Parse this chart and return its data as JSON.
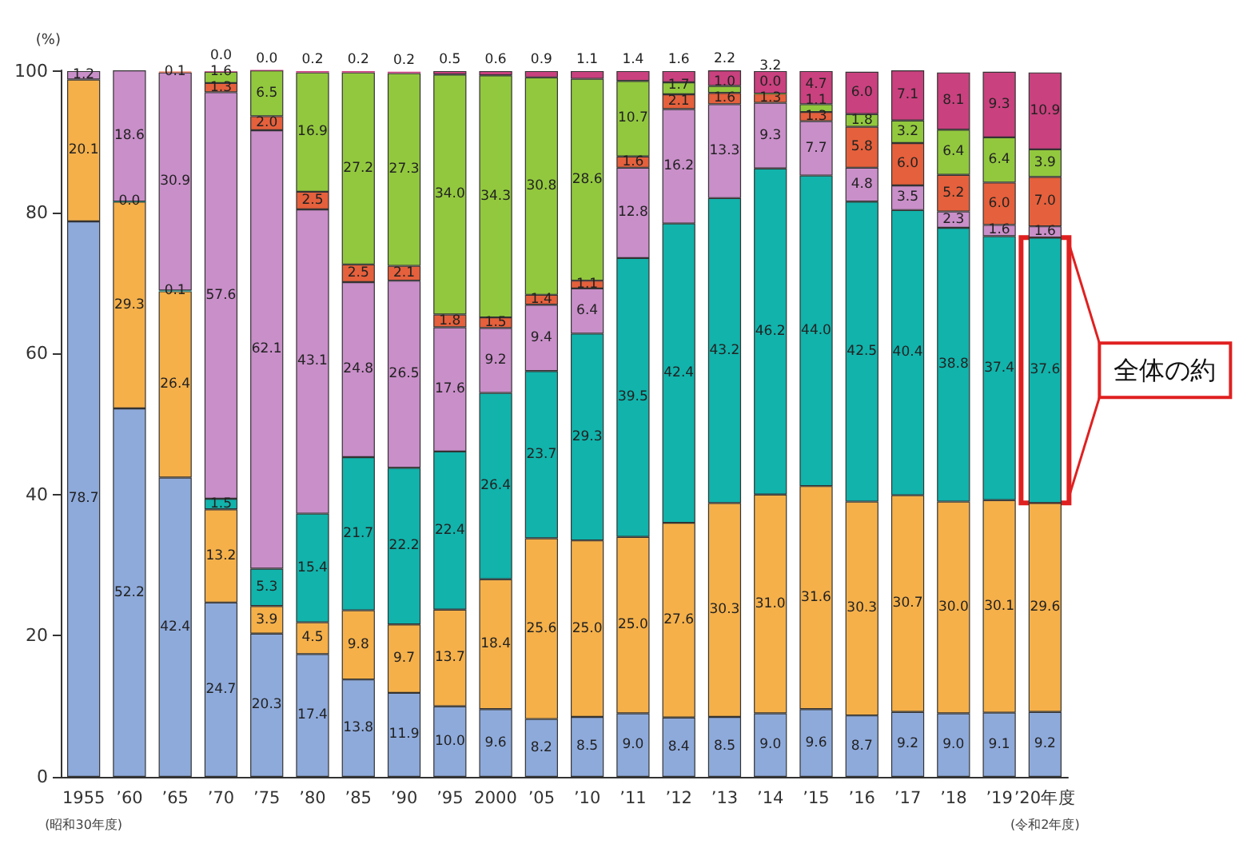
{
  "chart_data": {
    "type": "bar",
    "stacked": true,
    "grid": false,
    "ylabel": "(%)",
    "ylim": [
      0,
      100.1
    ],
    "yticks": [
      0,
      20,
      40,
      60,
      80,
      100
    ],
    "categories": [
      "1955",
      "’60",
      "’65",
      "’70",
      "’75",
      "’80",
      "’85",
      "’90",
      "’95",
      "2000",
      "’05",
      "’10",
      "’11",
      "’12",
      "’13",
      "’14",
      "’15",
      "’16",
      "’17",
      "’18",
      "’19",
      "’20年度"
    ],
    "series": [
      {
        "color": "#8eaadb",
        "values": [
          78.7,
          52.2,
          42.4,
          24.7,
          20.3,
          17.4,
          13.8,
          11.9,
          10.0,
          9.6,
          8.2,
          8.5,
          9.0,
          8.4,
          8.5,
          9.0,
          9.6,
          8.7,
          9.2,
          9.0,
          9.1,
          9.2
        ],
        "value_labels": [
          "78.7",
          "52.2",
          "42.4",
          "24.7",
          "20.3",
          "17.4",
          "13.8",
          "11.9",
          "10.0",
          "9.6",
          "8.2",
          "8.5",
          "9.0",
          "8.4",
          "8.5",
          "9.0",
          "9.6",
          "8.7",
          "9.2",
          "9.0",
          "9.1",
          "9.2"
        ]
      },
      {
        "color": "#f5b04a",
        "values": [
          20.1,
          29.3,
          26.4,
          13.2,
          3.9,
          4.5,
          9.8,
          9.7,
          13.7,
          18.4,
          25.6,
          25.0,
          25.0,
          27.6,
          30.3,
          31.0,
          31.6,
          30.3,
          30.7,
          30.0,
          30.1,
          29.6
        ],
        "value_labels": [
          "20.1",
          "29.3",
          "26.4",
          "13.2",
          "3.9",
          "4.5",
          "9.8",
          "9.7",
          "13.7",
          "18.4",
          "25.6",
          "25.0",
          "25.0",
          "27.6",
          "30.3",
          "31.0",
          "31.6",
          "30.3",
          "30.7",
          "30.0",
          "30.1",
          "29.6"
        ]
      },
      {
        "color": "#11b3ab",
        "values": [
          null,
          0.0,
          0.1,
          1.5,
          5.3,
          15.4,
          21.7,
          22.2,
          22.4,
          26.4,
          23.7,
          29.3,
          39.5,
          42.4,
          43.2,
          46.2,
          44.0,
          42.5,
          40.4,
          38.8,
          37.4,
          37.6
        ],
        "value_labels": [
          null,
          "0.0",
          "0.1",
          "1.5",
          "5.3",
          "15.4",
          "21.7",
          "22.2",
          "22.4",
          "26.4",
          "23.7",
          "29.3",
          "39.5",
          "42.4",
          "43.2",
          "46.2",
          "44.0",
          "42.5",
          "40.4",
          "38.8",
          "37.4",
          "37.6"
        ]
      },
      {
        "color": "#c98fc9",
        "values": [
          1.2,
          18.6,
          30.9,
          57.6,
          62.1,
          43.1,
          24.8,
          26.5,
          17.6,
          9.2,
          9.4,
          6.4,
          12.8,
          16.2,
          13.3,
          9.3,
          7.7,
          4.8,
          3.5,
          2.3,
          1.6,
          1.6
        ],
        "value_labels": [
          "1.2",
          "18.6",
          "30.9",
          "57.6",
          "62.1",
          "43.1",
          "24.8",
          "26.5",
          "17.6",
          "9.2",
          "9.4",
          "6.4",
          "12.8",
          "16.2",
          "13.3",
          "9.3",
          "7.7",
          "4.8",
          "3.5",
          "2.3",
          "1.6",
          "1.6"
        ]
      },
      {
        "color": "#e5603c",
        "values": [
          null,
          null,
          0.1,
          1.3,
          2.0,
          2.5,
          2.5,
          2.1,
          1.8,
          1.5,
          1.4,
          1.1,
          1.6,
          2.1,
          1.6,
          1.3,
          1.3,
          5.8,
          6.0,
          5.2,
          6.0,
          7.0
        ],
        "value_labels": [
          null,
          null,
          "0.1",
          "1.3",
          "2.0",
          "2.5",
          "2.5",
          "2.1",
          "1.8",
          "1.5",
          "1.4",
          "1.1",
          "1.6",
          "2.1",
          "1.6",
          "1.3",
          "1.3",
          "5.8",
          "6.0",
          "5.2",
          "6.0",
          "7.0"
        ]
      },
      {
        "color": "#92c83e",
        "values": [
          null,
          null,
          null,
          1.6,
          6.5,
          16.9,
          27.2,
          27.3,
          34.0,
          34.3,
          30.8,
          28.6,
          10.7,
          1.7,
          1.0,
          0.0,
          1.1,
          1.8,
          3.2,
          6.4,
          6.4,
          3.9
        ],
        "value_labels": [
          null,
          null,
          null,
          "1.6",
          "6.5",
          "16.9",
          "27.2",
          "27.3",
          "34.0",
          "34.3",
          "30.8",
          "28.6",
          "10.7",
          "1.7",
          "1.0",
          "0.0",
          "1.1",
          "1.8",
          "3.2",
          "6.4",
          "6.4",
          "3.9"
        ]
      },
      {
        "color": "#c9417e",
        "values": [
          null,
          null,
          null,
          0.0,
          0.0,
          0.2,
          0.2,
          0.2,
          0.5,
          0.6,
          0.9,
          1.1,
          1.4,
          1.6,
          2.2,
          3.2,
          4.7,
          6.0,
          7.1,
          8.1,
          9.3,
          10.9
        ],
        "value_labels": [
          null,
          null,
          null,
          "0.0",
          "0.0",
          "0.2",
          "0.2",
          "0.2",
          "0.5",
          "0.6",
          "0.9",
          "1.1",
          "1.4",
          "1.6",
          "2.2",
          "3.2",
          "4.7",
          "6.0",
          "7.1",
          "8.1",
          "9.3",
          "10.9"
        ]
      }
    ],
    "annotations": [
      "(昭和30年度)",
      "(令和2年度)",
      "全体の約"
    ]
  }
}
